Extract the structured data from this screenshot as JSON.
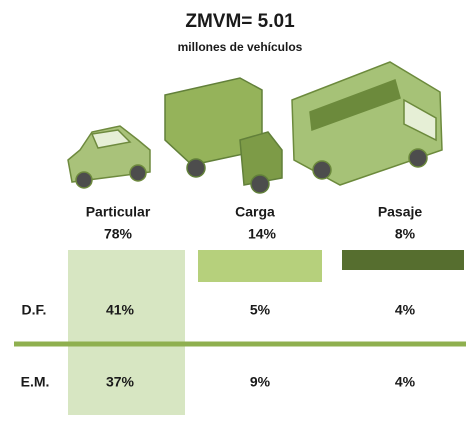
{
  "header": {
    "title": "ZMVM= 5.01",
    "subtitle": "millones de vehículos"
  },
  "columns": [
    {
      "label": "Particular",
      "share": "78%"
    },
    {
      "label": "Carga",
      "share": "14%"
    },
    {
      "label": "Pasaje",
      "share": "8%"
    }
  ],
  "rows": [
    {
      "label": "D.F.",
      "cells": [
        "41%",
        "5%",
        "4%"
      ]
    },
    {
      "label": "E.M.",
      "cells": [
        "37%",
        "9%",
        "4%"
      ]
    }
  ]
}
